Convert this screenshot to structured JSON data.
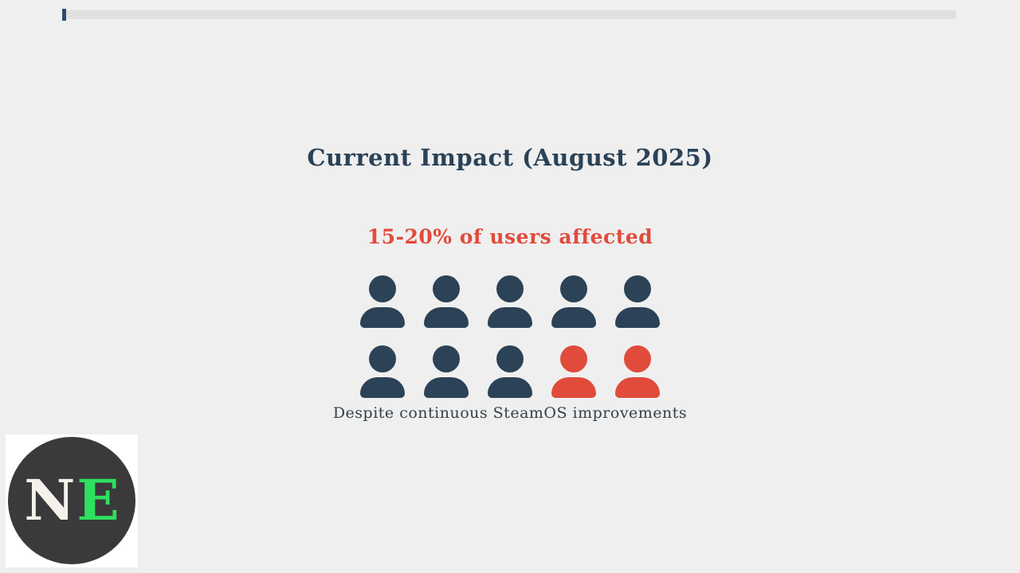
{
  "page": {
    "background_color": "#efefef"
  },
  "progress_bar": {
    "track_color": "#e0e0e0",
    "fill_color": "#2b4a6f",
    "progress_percent": 0.5
  },
  "slide": {
    "title": "Current Impact (August 2025)",
    "subtitle": "15-20% of users affected",
    "caption": "Despite continuous SteamOS improvements"
  },
  "colors": {
    "title": "#2b4257",
    "subtitle": "#e14b3b",
    "person_normal": "#2b4257",
    "person_affected": "#e14b3b"
  },
  "chart_data": {
    "type": "pictogram",
    "title": "15-20% of users affected",
    "annotation": "Despite continuous SteamOS improvements",
    "total_icons": 10,
    "highlighted_icons": 2,
    "highlight_color": "#e14b3b",
    "normal_color": "#2b4257",
    "rows": [
      [
        "normal",
        "normal",
        "normal",
        "normal",
        "normal"
      ],
      [
        "normal",
        "normal",
        "normal",
        "affected",
        "affected"
      ]
    ]
  },
  "logo": {
    "letter_n": "N",
    "letter_e": "E",
    "n_color": "#f5f2ec",
    "e_color": "#2ee05f",
    "circle_color": "#3a3a3a",
    "box_color": "#ffffff"
  }
}
